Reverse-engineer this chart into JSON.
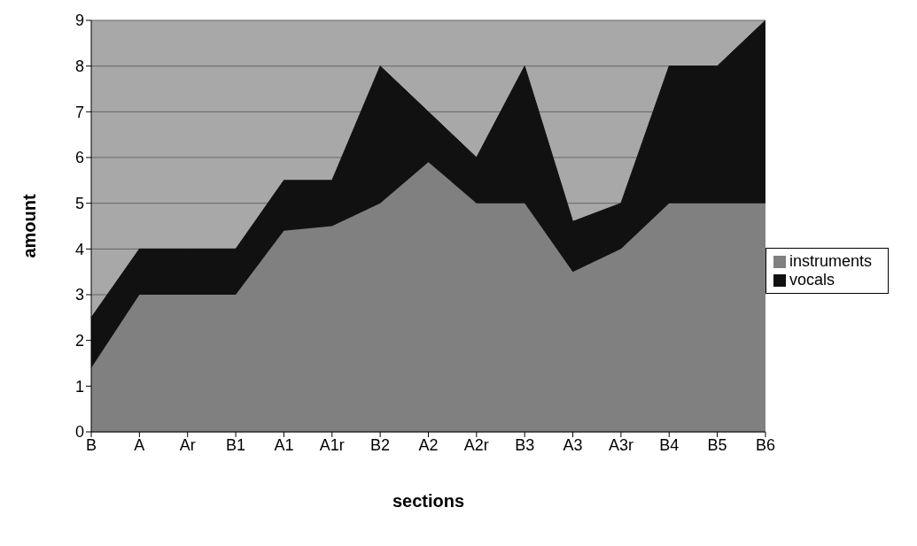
{
  "chart_data": {
    "type": "area",
    "stacked": true,
    "xlabel": "sections",
    "ylabel": "amount",
    "categories": [
      "B",
      "A",
      "Ar",
      "B1",
      "A1",
      "A1r",
      "B2",
      "A2",
      "A2r",
      "B3",
      "A3",
      "A3r",
      "B4",
      "B5",
      "B6"
    ],
    "series": [
      {
        "name": "instruments",
        "color": "#808080",
        "values": [
          1.4,
          3,
          3,
          3,
          4.4,
          4.5,
          5,
          5.9,
          5,
          5,
          3.5,
          4,
          5,
          5,
          5
        ]
      },
      {
        "name": "vocals",
        "color": "#111111",
        "values": [
          1.1,
          1,
          1,
          1,
          1.1,
          1,
          3,
          1.1,
          1,
          3,
          1.1,
          1,
          3,
          3,
          4
        ]
      }
    ],
    "ylim": [
      0,
      9
    ],
    "yticks": [
      0,
      1,
      2,
      3,
      4,
      5,
      6,
      7,
      8,
      9
    ],
    "grid": "y",
    "legend": "right"
  }
}
